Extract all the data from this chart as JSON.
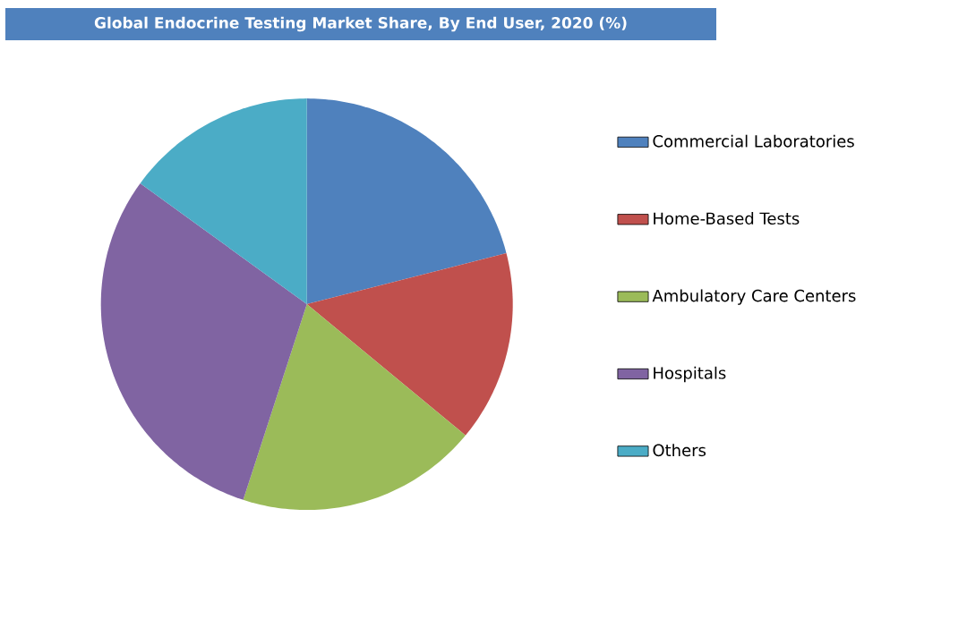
{
  "chart_data": {
    "type": "pie",
    "title": "Global Endocrine Testing Market Share, By End User, 2020 (%)",
    "categories": [
      "Commercial Laboratories",
      "Home-Based Tests",
      "Ambulatory Care Centers",
      "Hospitals",
      "Others"
    ],
    "values": [
      21,
      15,
      19,
      30,
      15
    ],
    "colors": [
      "#4f81bd",
      "#c0504d",
      "#9bbb59",
      "#8064a2",
      "#4bacc6"
    ],
    "legend": "right"
  }
}
